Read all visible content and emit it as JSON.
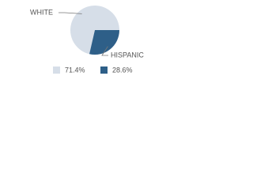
{
  "chart_data": {
    "type": "pie",
    "categories": [
      "WHITE",
      "HISPANIC"
    ],
    "values": [
      71.4,
      28.6
    ],
    "value_labels": [
      "71.4%",
      "28.6%"
    ],
    "colors": [
      "#d6dee8",
      "#2e5f88"
    ]
  }
}
